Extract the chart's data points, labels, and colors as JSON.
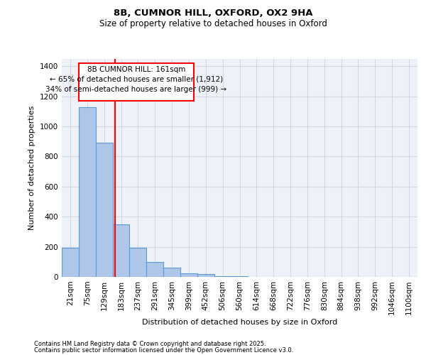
{
  "title_line1": "8B, CUMNOR HILL, OXFORD, OX2 9HA",
  "title_line2": "Size of property relative to detached houses in Oxford",
  "xlabel": "Distribution of detached houses by size in Oxford",
  "ylabel": "Number of detached properties",
  "footnote_line1": "Contains HM Land Registry data © Crown copyright and database right 2025.",
  "footnote_line2": "Contains public sector information licensed under the Open Government Licence v3.0.",
  "categories": [
    "21sqm",
    "75sqm",
    "129sqm",
    "183sqm",
    "237sqm",
    "291sqm",
    "345sqm",
    "399sqm",
    "452sqm",
    "506sqm",
    "560sqm",
    "614sqm",
    "668sqm",
    "722sqm",
    "776sqm",
    "830sqm",
    "884sqm",
    "938sqm",
    "992sqm",
    "1046sqm",
    "1100sqm"
  ],
  "bar_values": [
    195,
    1125,
    890,
    350,
    195,
    100,
    60,
    25,
    20,
    5,
    5,
    2,
    2,
    1,
    1,
    1,
    1,
    0,
    0,
    0,
    0
  ],
  "bar_color": "#aec6e8",
  "bar_edge_color": "#5b9bd5",
  "grid_color": "#d0d8e8",
  "background_color": "#eef2f8",
  "red_line_x": 2.65,
  "annotation_text_line1": "8B CUMNOR HILL: 161sqm",
  "annotation_text_line2": "← 65% of detached houses are smaller (1,912)",
  "annotation_text_line3": "34% of semi-detached houses are larger (999) →",
  "ylim": [
    0,
    1450
  ],
  "yticks": [
    0,
    200,
    400,
    600,
    800,
    1000,
    1200,
    1400
  ]
}
